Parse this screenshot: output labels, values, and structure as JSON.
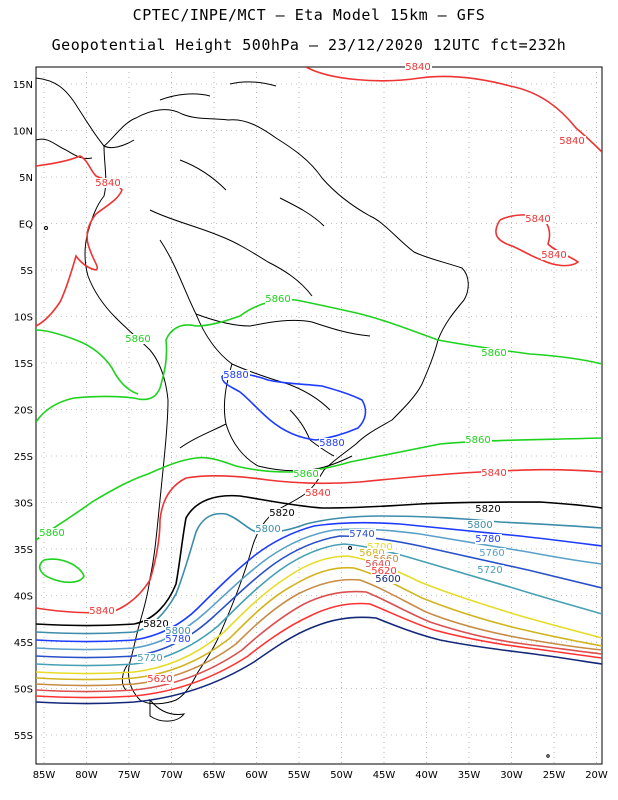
{
  "title_line1": "CPTEC/INPE/MCT –  Eta Model 15km – GFS",
  "title_line2": "Geopotential Height 500hPa – 23/12/2020 12UTC fct=232h",
  "lat_labels": [
    "15N",
    "10N",
    "5N",
    "EQ",
    "5S",
    "10S",
    "15S",
    "20S",
    "25S",
    "30S",
    "35S",
    "40S",
    "45S",
    "50S",
    "55S"
  ],
  "lon_labels": [
    "85W",
    "80W",
    "75W",
    "70W",
    "65W",
    "60W",
    "55W",
    "50W",
    "45W",
    "40W",
    "35W",
    "30W",
    "25W",
    "20W"
  ],
  "contour_labels": [
    "5840",
    "5860",
    "5880",
    "5820",
    "5800",
    "5780",
    "5760",
    "5740",
    "5720",
    "5700",
    "5680",
    "5660",
    "5640",
    "5620",
    "5600"
  ],
  "colors": {
    "c5880": "#1e3cff",
    "c5860": "#1ed21e",
    "c5840": "#ee3333",
    "c5820": "#000000",
    "c5800": "#3c8caa",
    "c5780": "#1e3cff",
    "c5760": "#5aa0c8",
    "c5740": "#2850c8",
    "c5720": "#46a0b4",
    "c5700": "#e6dc28",
    "c5680": "#d2b41e",
    "c5660": "#c88c46",
    "c5640": "#dc5050",
    "c5620": "#ff3232",
    "c5600": "#14287a",
    "coast": "#000000",
    "grid": "#888888"
  }
}
